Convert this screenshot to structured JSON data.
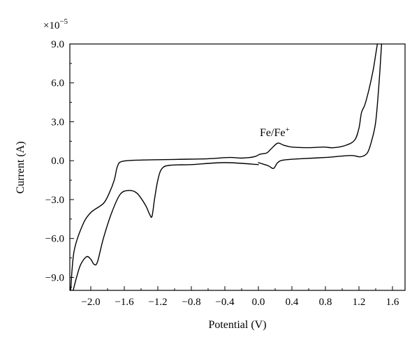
{
  "chart_data": {
    "type": "line",
    "title": "",
    "xlabel": "Potential (V)",
    "ylabel": "Current (A)",
    "y_multiplier_label": "×10",
    "y_multiplier_exponent": "−5",
    "xlim": [
      -2.25,
      1.75
    ],
    "ylim": [
      -10.0,
      9.0
    ],
    "x_ticks": [
      -2.0,
      -1.6,
      -1.2,
      -0.8,
      -0.4,
      0.0,
      0.4,
      0.8,
      1.2,
      1.6
    ],
    "x_tick_labels": [
      "−2.0",
      "−1.6",
      "−1.2",
      "−0.8",
      "−0.4",
      "0.0",
      "0.4",
      "0.8",
      "1.2",
      "1.6"
    ],
    "y_ticks": [
      -9.0,
      -6.0,
      -3.0,
      0.0,
      3.0,
      6.0,
      9.0
    ],
    "y_tick_labels": [
      "−9.0",
      "−6.0",
      "−3.0",
      "0.0",
      "3.0",
      "6.0",
      "9.0"
    ],
    "grid": false,
    "series_color": "#000000",
    "annotations": [
      {
        "text": "Fe/Fe",
        "superscript": "+",
        "x": 0.18,
        "y": 2.0
      }
    ],
    "series": [
      {
        "name": "",
        "points": [
          [
            0.0,
            -0.3
          ],
          [
            -0.4,
            -0.15
          ],
          [
            -0.8,
            -0.3
          ],
          [
            -1.05,
            -0.35
          ],
          [
            -1.15,
            -0.6
          ],
          [
            -1.2,
            -1.5
          ],
          [
            -1.24,
            -3.0
          ],
          [
            -1.27,
            -4.3
          ],
          [
            -1.3,
            -4.1
          ],
          [
            -1.35,
            -3.4
          ],
          [
            -1.45,
            -2.5
          ],
          [
            -1.55,
            -2.3
          ],
          [
            -1.65,
            -2.6
          ],
          [
            -1.75,
            -4.0
          ],
          [
            -1.85,
            -6.0
          ],
          [
            -1.92,
            -7.8
          ],
          [
            -1.96,
            -8.0
          ],
          [
            -2.0,
            -7.6
          ],
          [
            -2.05,
            -7.4
          ],
          [
            -2.12,
            -8.0
          ],
          [
            -2.17,
            -9.0
          ],
          [
            -2.21,
            -10.0
          ]
        ]
      },
      {
        "name": "",
        "points": [
          [
            -2.24,
            -10.0
          ],
          [
            -2.2,
            -7.0
          ],
          [
            -2.1,
            -5.0
          ],
          [
            -2.0,
            -4.0
          ],
          [
            -1.85,
            -3.3
          ],
          [
            -1.78,
            -2.5
          ],
          [
            -1.72,
            -1.5
          ],
          [
            -1.68,
            -0.4
          ],
          [
            -1.62,
            -0.05
          ],
          [
            -1.4,
            0.05
          ],
          [
            -1.0,
            0.1
          ],
          [
            -0.6,
            0.15
          ],
          [
            -0.35,
            0.25
          ],
          [
            -0.2,
            0.2
          ],
          [
            -0.05,
            0.3
          ],
          [
            0.02,
            0.5
          ],
          [
            0.1,
            0.6
          ],
          [
            0.15,
            0.9
          ],
          [
            0.23,
            1.35
          ],
          [
            0.3,
            1.2
          ],
          [
            0.4,
            1.05
          ],
          [
            0.6,
            1.0
          ],
          [
            0.78,
            1.05
          ],
          [
            0.9,
            1.0
          ],
          [
            1.05,
            1.2
          ],
          [
            1.15,
            1.6
          ],
          [
            1.2,
            2.5
          ],
          [
            1.23,
            3.7
          ],
          [
            1.27,
            4.3
          ],
          [
            1.32,
            5.5
          ],
          [
            1.37,
            7.0
          ],
          [
            1.4,
            8.2
          ],
          [
            1.42,
            9.0
          ]
        ]
      },
      {
        "name": "",
        "points": [
          [
            1.47,
            9.0
          ],
          [
            1.44,
            6.0
          ],
          [
            1.4,
            3.0
          ],
          [
            1.35,
            1.5
          ],
          [
            1.3,
            0.6
          ],
          [
            1.22,
            0.3
          ],
          [
            1.1,
            0.4
          ],
          [
            0.8,
            0.25
          ],
          [
            0.5,
            0.15
          ],
          [
            0.3,
            0.05
          ],
          [
            0.23,
            -0.15
          ],
          [
            0.18,
            -0.6
          ],
          [
            0.12,
            -0.4
          ],
          [
            0.0,
            -0.15
          ]
        ]
      }
    ]
  }
}
